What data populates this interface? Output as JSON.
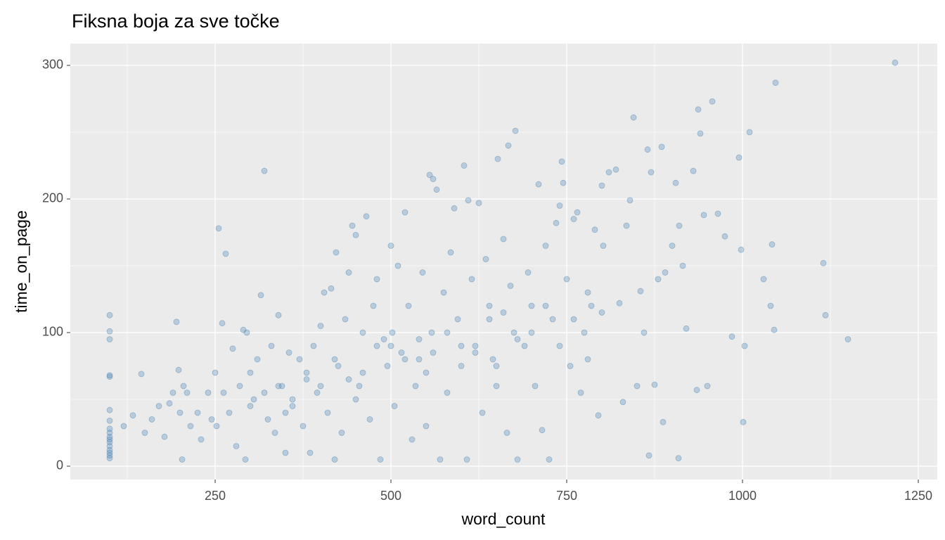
{
  "chart_data": {
    "type": "scatter",
    "title": "Fiksna boja za sve točke",
    "x_label": "word_count",
    "y_label": "time_on_page",
    "color": "#4682b4",
    "xlim": [
      44,
      1277
    ],
    "ylim": [
      -10,
      316.3
    ],
    "xticks": [
      250,
      500,
      750,
      1000,
      1250
    ],
    "yticks": [
      0,
      100,
      200,
      300
    ],
    "xminor": [
      125,
      375,
      625,
      875,
      1125
    ],
    "yminor": [
      50,
      150,
      250
    ],
    "grid": true,
    "x": [
      100,
      100,
      100,
      100,
      100,
      100,
      100,
      100,
      100,
      100,
      100,
      100,
      100,
      100,
      100,
      100,
      100,
      120,
      133,
      145,
      150,
      160,
      170,
      178,
      185,
      190,
      195,
      198,
      200,
      205,
      210,
      203,
      215,
      225,
      230,
      240,
      245,
      250,
      252,
      255,
      260,
      262,
      265,
      270,
      275,
      280,
      285,
      290,
      293,
      295,
      300,
      305,
      310,
      315,
      320,
      325,
      330,
      335,
      340,
      345,
      350,
      355,
      360,
      370,
      375,
      380,
      385,
      390,
      395,
      400,
      405,
      410,
      415,
      420,
      422,
      425,
      430,
      435,
      440,
      445,
      450,
      455,
      460,
      465,
      470,
      475,
      480,
      485,
      490,
      495,
      500,
      502,
      505,
      510,
      515,
      520,
      525,
      530,
      535,
      540,
      545,
      550,
      555,
      558,
      560,
      565,
      570,
      575,
      580,
      585,
      590,
      595,
      600,
      604,
      608,
      610,
      615,
      620,
      625,
      630,
      635,
      640,
      645,
      650,
      652,
      660,
      665,
      667,
      670,
      675,
      677,
      680,
      690,
      695,
      700,
      705,
      710,
      715,
      720,
      725,
      730,
      735,
      740,
      743,
      745,
      750,
      755,
      760,
      765,
      770,
      775,
      780,
      785,
      790,
      795,
      800,
      802,
      810,
      820,
      825,
      830,
      835,
      840,
      845,
      850,
      855,
      860,
      865,
      867,
      870,
      875,
      880,
      885,
      887,
      890,
      900,
      905,
      909,
      910,
      915,
      920,
      930,
      935,
      937,
      940,
      945,
      950,
      957,
      965,
      975,
      985,
      995,
      998,
      1001,
      1003,
      1010,
      1030,
      1040,
      1042,
      1045,
      1047,
      1115,
      1118,
      1150,
      1217,
      300,
      320,
      340,
      360,
      380,
      400,
      420,
      440,
      460,
      480,
      500,
      520,
      540,
      560,
      580,
      600,
      620,
      640,
      660,
      680,
      700,
      720,
      740,
      760,
      780,
      800,
      350,
      450,
      550,
      650
    ],
    "values": [
      113,
      101,
      95,
      68,
      67,
      42,
      34,
      28,
      25,
      22,
      20,
      18,
      15,
      12,
      10,
      8,
      6,
      30,
      38,
      69,
      25,
      35,
      45,
      22,
      47,
      55,
      108,
      72,
      40,
      60,
      55,
      5,
      30,
      40,
      20,
      55,
      35,
      70,
      30,
      178,
      107,
      55,
      159,
      40,
      88,
      15,
      60,
      102,
      5,
      100,
      70,
      50,
      80,
      128,
      221,
      35,
      90,
      25,
      113,
      60,
      10,
      85,
      45,
      80,
      30,
      65,
      10,
      90,
      55,
      105,
      130,
      40,
      133,
      5,
      160,
      75,
      25,
      110,
      145,
      180,
      173,
      60,
      100,
      187,
      35,
      120,
      140,
      5,
      95,
      75,
      165,
      100,
      45,
      150,
      85,
      190,
      120,
      20,
      60,
      80,
      145,
      30,
      218,
      100,
      215,
      207,
      5,
      130,
      55,
      160,
      193,
      110,
      75,
      225,
      5,
      199,
      140,
      90,
      197,
      40,
      155,
      120,
      80,
      60,
      230,
      170,
      25,
      240,
      135,
      100,
      251,
      5,
      90,
      145,
      120,
      60,
      211,
      27,
      165,
      5,
      110,
      182,
      195,
      228,
      212,
      140,
      75,
      185,
      190,
      55,
      100,
      80,
      120,
      177,
      38,
      210,
      165,
      220,
      222,
      122,
      48,
      180,
      199,
      261,
      60,
      131,
      100,
      237,
      8,
      220,
      61,
      140,
      239,
      33,
      145,
      165,
      212,
      6,
      180,
      150,
      103,
      221,
      57,
      267,
      249,
      188,
      60,
      273,
      189,
      172,
      97,
      231,
      162,
      33,
      90,
      250,
      140,
      120,
      166,
      102,
      287,
      152,
      113,
      95,
      302,
      45,
      55,
      60,
      50,
      70,
      60,
      80,
      65,
      70,
      90,
      90,
      80,
      95,
      85,
      100,
      90,
      85,
      110,
      115,
      95,
      100,
      120,
      90,
      110,
      130,
      115,
      40,
      50,
      70,
      75
    ]
  }
}
